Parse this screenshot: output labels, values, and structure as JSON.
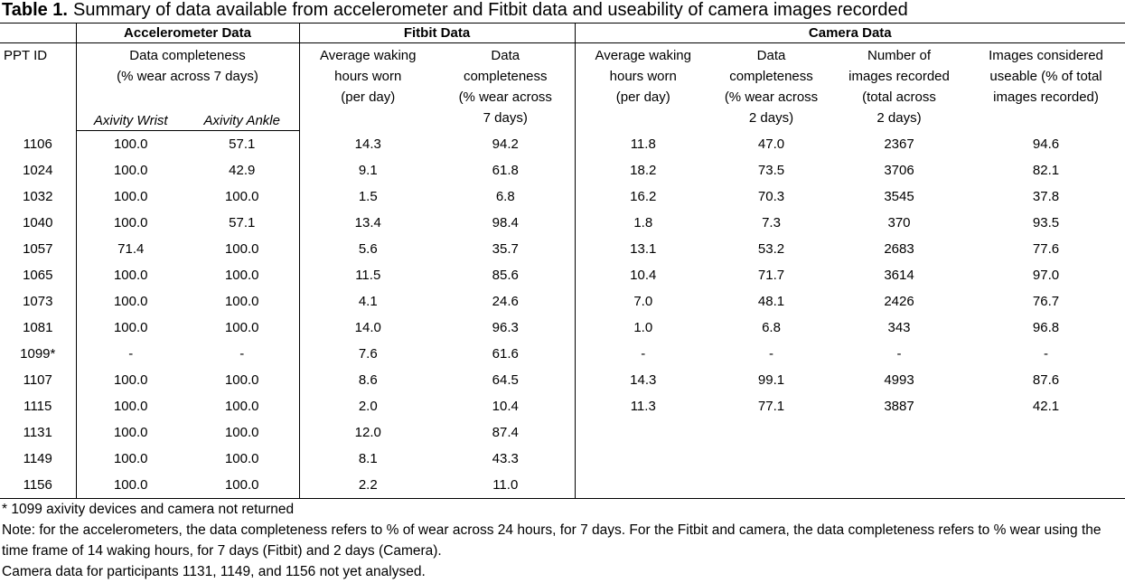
{
  "title": {
    "label": "Table 1.",
    "text": "Summary of data available from accelerometer and Fitbit data and useability of camera images recorded"
  },
  "table": {
    "groups": [
      "Accelerometer Data",
      "Fitbit Data",
      "Camera Data"
    ],
    "columns": [
      "PPT ID",
      "Data completeness\n(% wear across 7 days)",
      "Average waking\nhours worn\n(per day)",
      "Data\ncompleteness\n(% wear across\n7 days)",
      "Average waking\nhours worn\n(per day)",
      "Data\ncompleteness\n(% wear across\n2 days)",
      "Number of\nimages recorded\n(total across\n2 days)",
      "Images considered\nuseable (% of total\nimages recorded)"
    ],
    "subcolumns": [
      "Axivity Wrist",
      "Axivity Ankle"
    ],
    "rows": [
      [
        "1106",
        "100.0",
        "57.1",
        "14.3",
        "94.2",
        "11.8",
        "47.0",
        "2367",
        "94.6"
      ],
      [
        "1024",
        "100.0",
        "42.9",
        "9.1",
        "61.8",
        "18.2",
        "73.5",
        "3706",
        "82.1"
      ],
      [
        "1032",
        "100.0",
        "100.0",
        "1.5",
        "6.8",
        "16.2",
        "70.3",
        "3545",
        "37.8"
      ],
      [
        "1040",
        "100.0",
        "57.1",
        "13.4",
        "98.4",
        "1.8",
        "7.3",
        "370",
        "93.5"
      ],
      [
        "1057",
        "71.4",
        "100.0",
        "5.6",
        "35.7",
        "13.1",
        "53.2",
        "2683",
        "77.6"
      ],
      [
        "1065",
        "100.0",
        "100.0",
        "11.5",
        "85.6",
        "10.4",
        "71.7",
        "3614",
        "97.0"
      ],
      [
        "1073",
        "100.0",
        "100.0",
        "4.1",
        "24.6",
        "7.0",
        "48.1",
        "2426",
        "76.7"
      ],
      [
        "1081",
        "100.0",
        "100.0",
        "14.0",
        "96.3",
        "1.0",
        "6.8",
        "343",
        "96.8"
      ],
      [
        "1099*",
        "-",
        "-",
        "7.6",
        "61.6",
        "-",
        "-",
        "-",
        "-"
      ],
      [
        "1107",
        "100.0",
        "100.0",
        "8.6",
        "64.5",
        "14.3",
        "99.1",
        "4993",
        "87.6"
      ],
      [
        "1115",
        "100.0",
        "100.0",
        "2.0",
        "10.4",
        "11.3",
        "77.1",
        "3887",
        "42.1"
      ],
      [
        "1131",
        "100.0",
        "100.0",
        "12.0",
        "87.4"
      ],
      [
        "1149",
        "100.0",
        "100.0",
        "8.1",
        "43.3"
      ],
      [
        "1156",
        "100.0",
        "100.0",
        "2.2",
        "11.0"
      ]
    ]
  },
  "notes": [
    "* 1099 axivity devices and camera not returned",
    "Note: for the accelerometers, the data completeness refers to % of wear across 24 hours, for 7 days. For the Fitbit and camera, the data completeness refers to % wear using the time frame of 14 waking hours, for 7 days (Fitbit) and 2 days (Camera).",
    "Camera data for participants 1131, 1149, and 1156 not yet analysed."
  ]
}
